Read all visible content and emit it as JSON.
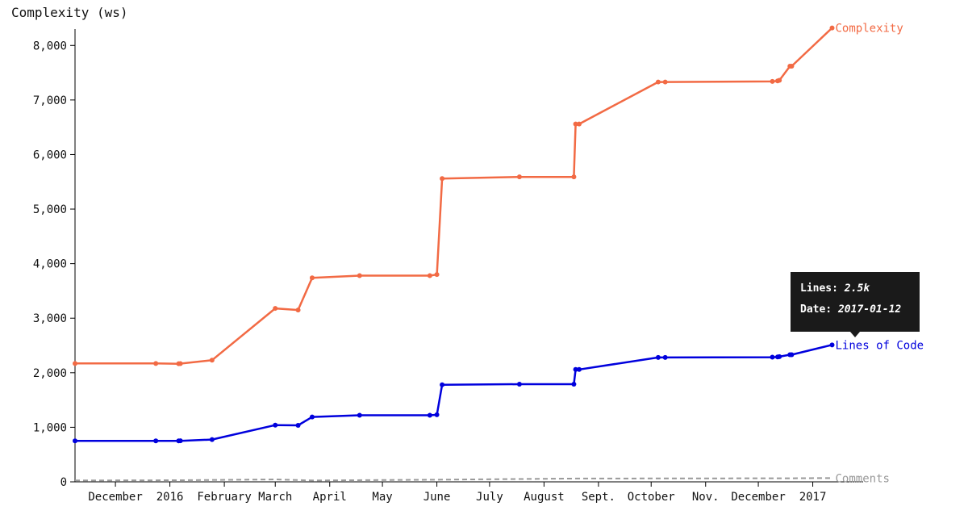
{
  "chart_data": {
    "type": "line",
    "ylabel": "Complexity (ws)",
    "ylim": [
      0,
      8300
    ],
    "yticks": [
      "0",
      "1,000",
      "2,000",
      "3,000",
      "4,000",
      "5,000",
      "6,000",
      "7,000",
      "8,000"
    ],
    "ytick_values": [
      0,
      1000,
      2000,
      3000,
      4000,
      5000,
      6000,
      7000,
      8000
    ],
    "xlim": [
      "2015-11-08",
      "2017-01-26"
    ],
    "xticks": [
      {
        "label": "December",
        "date": "2015-12-01"
      },
      {
        "label": "2016",
        "date": "2016-01-01"
      },
      {
        "label": "February",
        "date": "2016-02-01"
      },
      {
        "label": "March",
        "date": "2016-03-01"
      },
      {
        "label": "April",
        "date": "2016-04-01"
      },
      {
        "label": "May",
        "date": "2016-05-01"
      },
      {
        "label": "June",
        "date": "2016-06-01"
      },
      {
        "label": "July",
        "date": "2016-07-01"
      },
      {
        "label": "August",
        "date": "2016-08-01"
      },
      {
        "label": "Sept.",
        "date": "2016-09-01"
      },
      {
        "label": "October",
        "date": "2016-10-01"
      },
      {
        "label": "Nov.",
        "date": "2016-11-01"
      },
      {
        "label": "December",
        "date": "2016-12-01"
      },
      {
        "label": "2017",
        "date": "2017-01-01"
      }
    ],
    "series": [
      {
        "name": "Complexity",
        "color": "#f26a44",
        "markers": true,
        "dashed": false,
        "points": [
          [
            "2015-11-08",
            2170
          ],
          [
            "2015-12-24",
            2170
          ],
          [
            "2016-01-06",
            2165
          ],
          [
            "2016-01-07",
            2168
          ],
          [
            "2016-01-25",
            2230
          ],
          [
            "2016-03-01",
            3180
          ],
          [
            "2016-03-14",
            3150
          ],
          [
            "2016-03-22",
            3740
          ],
          [
            "2016-04-18",
            3780
          ],
          [
            "2016-05-28",
            3780
          ],
          [
            "2016-06-01",
            3800
          ],
          [
            "2016-06-04",
            5560
          ],
          [
            "2016-07-18",
            5590
          ],
          [
            "2016-08-18",
            5590
          ],
          [
            "2016-08-19",
            6560
          ],
          [
            "2016-08-21",
            6560
          ],
          [
            "2016-10-05",
            7330
          ],
          [
            "2016-10-09",
            7330
          ],
          [
            "2016-12-09",
            7340
          ],
          [
            "2016-12-12",
            7350
          ],
          [
            "2016-12-13",
            7360
          ],
          [
            "2016-12-19",
            7620
          ],
          [
            "2016-12-20",
            7620
          ],
          [
            "2017-01-12",
            8320
          ]
        ]
      },
      {
        "name": "Lines of Code",
        "color": "#0000dd",
        "markers": true,
        "dashed": false,
        "points": [
          [
            "2015-11-08",
            750
          ],
          [
            "2015-12-24",
            750
          ],
          [
            "2016-01-06",
            750
          ],
          [
            "2016-01-07",
            752
          ],
          [
            "2016-01-25",
            775
          ],
          [
            "2016-03-01",
            1040
          ],
          [
            "2016-03-14",
            1035
          ],
          [
            "2016-03-22",
            1190
          ],
          [
            "2016-04-18",
            1220
          ],
          [
            "2016-05-28",
            1220
          ],
          [
            "2016-06-01",
            1230
          ],
          [
            "2016-06-04",
            1780
          ],
          [
            "2016-07-18",
            1790
          ],
          [
            "2016-08-18",
            1790
          ],
          [
            "2016-08-19",
            2060
          ],
          [
            "2016-08-21",
            2060
          ],
          [
            "2016-10-05",
            2280
          ],
          [
            "2016-10-09",
            2280
          ],
          [
            "2016-12-09",
            2285
          ],
          [
            "2016-12-12",
            2290
          ],
          [
            "2016-12-13",
            2295
          ],
          [
            "2016-12-19",
            2330
          ],
          [
            "2016-12-20",
            2330
          ],
          [
            "2017-01-12",
            2510
          ]
        ]
      },
      {
        "name": "Comments",
        "color": "#999999",
        "markers": false,
        "dashed": true,
        "points": [
          [
            "2015-11-08",
            25
          ],
          [
            "2016-01-07",
            30
          ],
          [
            "2016-03-01",
            45
          ],
          [
            "2016-03-22",
            25
          ],
          [
            "2016-06-04",
            40
          ],
          [
            "2016-08-19",
            60
          ],
          [
            "2016-12-20",
            65
          ],
          [
            "2017-01-12",
            70
          ]
        ]
      }
    ],
    "tooltip": {
      "lines_label": "Lines:",
      "lines_value": "2.5k",
      "date_label": "Date:",
      "date_value": "2017-01-12"
    }
  }
}
